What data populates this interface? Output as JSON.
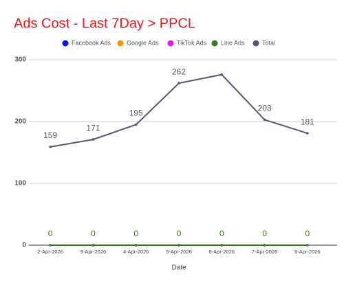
{
  "chart_data": {
    "type": "line",
    "title": "Ads Cost - Last 7Day > PPCL",
    "x_label": "Date",
    "categories": [
      "2-Apr-2026",
      "3-Apr-2026",
      "4-Apr-2026",
      "5-Apr-2026",
      "6-Apr-2026",
      "7-Apr-2026",
      "8-Apr-2026"
    ],
    "series": [
      {
        "name": "Facebook Ads",
        "color": "#0a14e6",
        "values": [
          0,
          0,
          0,
          0,
          0,
          0,
          0
        ]
      },
      {
        "name": "Google Ads",
        "color": "#f5960a",
        "values": [
          0,
          0,
          0,
          0,
          0,
          0,
          0
        ]
      },
      {
        "name": "TikTok Ads",
        "color": "#f014e6",
        "values": [
          0,
          0,
          0,
          0,
          0,
          0,
          0
        ]
      },
      {
        "name": "Line Ads",
        "color": "#3a7a1e",
        "values": [
          0,
          0,
          0,
          0,
          0,
          0,
          0
        ],
        "value_labels": [
          "0",
          "0",
          "0",
          "0",
          "0",
          "0",
          "0"
        ]
      },
      {
        "name": "Total",
        "color": "#5a5278",
        "values": [
          159,
          171,
          195,
          262,
          276,
          203,
          181
        ],
        "value_labels": [
          "159",
          "171",
          "195",
          "262",
          null,
          "203",
          "181"
        ]
      }
    ],
    "ylim": [
      0,
      300
    ],
    "yticks": [
      0,
      100,
      200,
      300
    ],
    "grid": true,
    "legend": "top"
  }
}
